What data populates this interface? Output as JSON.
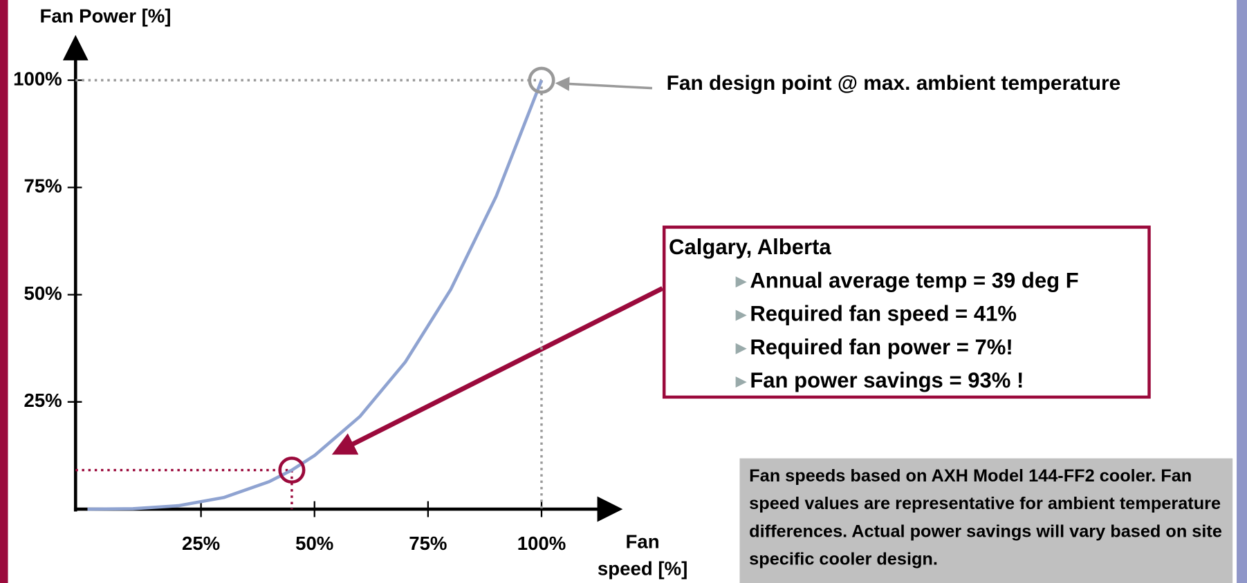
{
  "chart_data": {
    "type": "line",
    "ylabel": "Fan Power [%]",
    "xlabel": "Fan speed [%]",
    "xlim": [
      0,
      117
    ],
    "ylim": [
      0,
      110
    ],
    "xticks": [
      {
        "value": 25,
        "label": "25%"
      },
      {
        "value": 50,
        "label": "50%"
      },
      {
        "value": 75,
        "label": "75%"
      },
      {
        "value": 100,
        "label": "100%"
      }
    ],
    "yticks": [
      {
        "value": 25,
        "label": "25%"
      },
      {
        "value": 50,
        "label": "50%"
      },
      {
        "value": 75,
        "label": "75%"
      },
      {
        "value": 100,
        "label": "100%"
      }
    ],
    "x": [
      0,
      10,
      20,
      30,
      40,
      45,
      50,
      60,
      70,
      80,
      90,
      100
    ],
    "series": [
      {
        "color": "#8fa3d1",
        "values": [
          0,
          0.1,
          0.8,
          2.7,
          6.4,
          9.1,
          12.5,
          21.6,
          34.3,
          51.2,
          72.9,
          100
        ]
      }
    ],
    "highlights": [
      {
        "x": 100,
        "y": 100,
        "color": "#999999"
      },
      {
        "x": 45,
        "y": 9.1,
        "color": "#9b0a3c"
      }
    ],
    "design_annotation": "Fan design point @ max. ambient temperature",
    "callout": {
      "title": "Calgary, Alberta",
      "items": [
        "Annual average temp = 39 deg F",
        "Required fan speed = 41%",
        "Required fan power = 7%!",
        "Fan power savings = 93% !"
      ]
    },
    "note": "Fan speeds based on AXH Model 144-FF2 cooler. Fan speed values are representative for ambient temperature differences. Actual power savings will vary based on site specific cooler design."
  }
}
